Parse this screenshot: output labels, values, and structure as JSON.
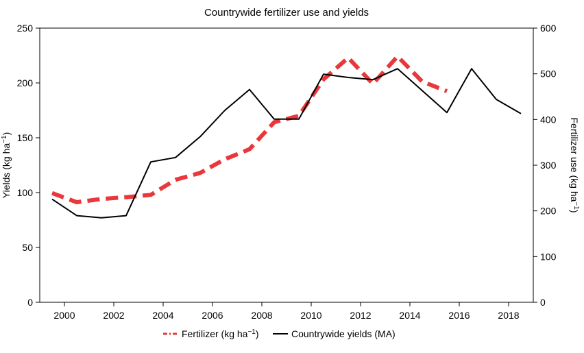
{
  "chart_data": {
    "type": "line",
    "title": "Countrywide fertilizer use and yields",
    "xlabel": "",
    "ylabel_left": {
      "base": "Yields (kg ha",
      "sup": "−1",
      "close": ")"
    },
    "ylabel_right": {
      "base": "Fertilizer use (kg ha",
      "sup": "−1",
      "close": ")"
    },
    "xlim": [
      1999,
      2019
    ],
    "ylim_left": [
      0,
      250
    ],
    "ylim_right": [
      0,
      600
    ],
    "x_ticks": [
      "2000",
      "2002",
      "2004",
      "2006",
      "2008",
      "2010",
      "2012",
      "2014",
      "2016",
      "2018"
    ],
    "y_ticks_left": [
      "0",
      "50",
      "100",
      "150",
      "200",
      "250"
    ],
    "y_ticks_right": [
      "0",
      "100",
      "200",
      "300",
      "400",
      "500",
      "600"
    ],
    "series": [
      {
        "name": "Fertilizer",
        "legend": {
          "base": "Fertilizer (kg ha",
          "sup": "−1",
          "close": ")"
        },
        "axis": "right",
        "style": "dashed",
        "color": "#e8383b",
        "x": [
          1999.5,
          2000.5,
          2001.5,
          2002.5,
          2003.5,
          2004.5,
          2005.5,
          2006.5,
          2007.5,
          2008.5,
          2009.5,
          2010.5,
          2011.5,
          2012.5,
          2013.5,
          2014.5,
          2015.5
        ],
        "values": [
          239,
          219,
          226,
          230,
          235,
          268,
          283,
          313,
          335,
          394,
          408,
          488,
          535,
          478,
          538,
          483,
          462
        ]
      },
      {
        "name": "Countrywide yields (MA)",
        "legend": {
          "base": "Countrywide yields (MA)",
          "sup": "",
          "close": ""
        },
        "axis": "left",
        "style": "solid",
        "color": "#000000",
        "x": [
          1999.5,
          2000.5,
          2001.5,
          2002.5,
          2003.5,
          2004.5,
          2005.5,
          2006.5,
          2007.5,
          2008.5,
          2009.5,
          2010.5,
          2011.5,
          2012.5,
          2013.5,
          2014.5,
          2015.5,
          2016.5,
          2017.5,
          2018.5
        ],
        "values": [
          94,
          79,
          77,
          79,
          128,
          132,
          151,
          175,
          194,
          167,
          167,
          208,
          205,
          203,
          213,
          193,
          173,
          213,
          185,
          172
        ]
      }
    ]
  }
}
